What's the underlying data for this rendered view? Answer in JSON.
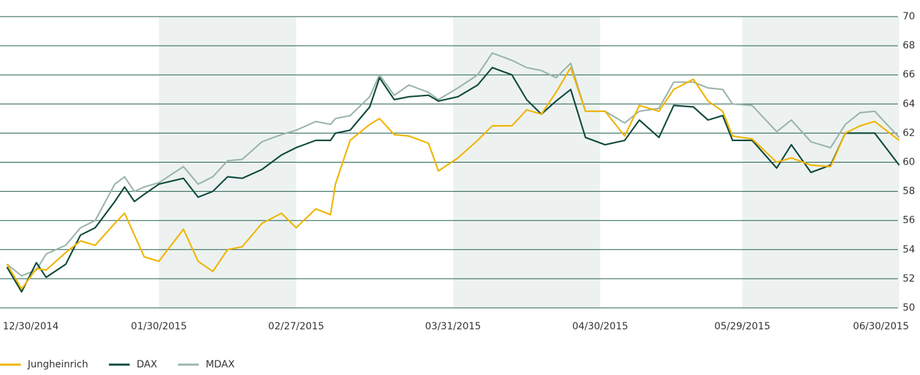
{
  "chart_data": {
    "type": "line",
    "x": [
      "12/30/2014",
      "01/02/2015",
      "01/05/2015",
      "01/07/2015",
      "01/11/2015",
      "01/14/2015",
      "01/17/2015",
      "01/21/2015",
      "01/23/2015",
      "01/25/2015",
      "01/27/2015",
      "01/30/2015",
      "02/04/2015",
      "02/07/2015",
      "02/10/2015",
      "02/13/2015",
      "02/16/2015",
      "02/20/2015",
      "02/24/2015",
      "02/27/2015",
      "03/03/2015",
      "03/06/2015",
      "03/07/2015",
      "03/10/2015",
      "03/14/2015",
      "03/16/2015",
      "03/19/2015",
      "03/22/2015",
      "03/26/2015",
      "03/28/2015",
      "04/01/2015",
      "04/05/2015",
      "04/08/2015",
      "04/12/2015",
      "04/15/2015",
      "04/18/2015",
      "04/21/2015",
      "04/24/2015",
      "04/27/2015",
      "05/01/2015",
      "05/05/2015",
      "05/08/2015",
      "05/12/2015",
      "05/15/2015",
      "05/19/2015",
      "05/22/2015",
      "05/25/2015",
      "05/27/2015",
      "05/31/2015",
      "06/05/2015",
      "06/08/2015",
      "06/12/2015",
      "06/16/2015",
      "06/19/2015",
      "06/22/2015",
      "06/25/2015",
      "06/30/2015"
    ],
    "series": [
      {
        "name": "Jungheinrich",
        "color": "#f0b400",
        "values": [
          53,
          51.3,
          52.7,
          52.6,
          53.8,
          54.6,
          54.3,
          55.8,
          56.5,
          55,
          53.5,
          53.2,
          55.4,
          53.2,
          52.5,
          54,
          54.2,
          55.8,
          56.5,
          55.5,
          56.8,
          56.4,
          58.5,
          61.5,
          62.6,
          63,
          61.9,
          61.8,
          61.3,
          59.4,
          60.3,
          61.5,
          62.5,
          62.5,
          63.6,
          63.3,
          64.8,
          66.5,
          63.5,
          63.5,
          61.8,
          63.9,
          63.5,
          65,
          65.7,
          64.2,
          63.5,
          61.8,
          61.6,
          60,
          60.3,
          59.8,
          59.7,
          62,
          62.5,
          62.8,
          61.5
        ]
      },
      {
        "name": "DAX",
        "color": "#0f4a3c",
        "values": [
          52.8,
          51.1,
          53.1,
          52.1,
          53,
          55,
          55.5,
          57.3,
          58.3,
          57.3,
          57.8,
          58.5,
          58.9,
          57.6,
          58,
          59,
          58.9,
          59.5,
          60.5,
          61,
          61.5,
          61.5,
          62,
          62.2,
          63.8,
          65.8,
          64.3,
          64.5,
          64.6,
          64.2,
          64.5,
          65.3,
          66.5,
          66,
          64.3,
          63.3,
          64.2,
          65,
          61.7,
          61.2,
          61.5,
          62.9,
          61.7,
          63.9,
          63.8,
          62.9,
          63.2,
          61.5,
          61.5,
          59.6,
          61.2,
          59.3,
          59.8,
          62,
          62,
          62,
          59.8
        ]
      },
      {
        "name": "MDAX",
        "color": "#9bb5ab",
        "values": [
          53,
          52.2,
          52.6,
          53.7,
          54.3,
          55.5,
          56,
          58.5,
          59,
          58,
          58.3,
          58.6,
          59.7,
          58.5,
          59,
          60.1,
          60.2,
          61.4,
          61.9,
          62.2,
          62.8,
          62.6,
          63,
          63.2,
          64.5,
          66,
          64.6,
          65.3,
          64.8,
          64.3,
          65.1,
          66,
          67.5,
          67,
          66.5,
          66.3,
          65.8,
          66.8,
          63.5,
          63.5,
          62.7,
          63.5,
          63.7,
          65.5,
          65.5,
          65.1,
          65,
          64,
          63.9,
          62.1,
          62.9,
          61.4,
          61,
          62.6,
          63.4,
          63.5,
          61.7
        ]
      }
    ],
    "xlim": [
      "12/30/2014",
      "06/30/2015"
    ],
    "xticks": [
      "12/30/2014",
      "01/30/2015",
      "02/27/2015",
      "03/31/2015",
      "04/30/2015",
      "05/29/2015",
      "06/30/2015"
    ],
    "ylim": [
      50,
      70
    ],
    "yticks": [
      50,
      52,
      54,
      56,
      58,
      60,
      62,
      64,
      66,
      68,
      70
    ],
    "grid": true,
    "legend": "bottom-left"
  }
}
